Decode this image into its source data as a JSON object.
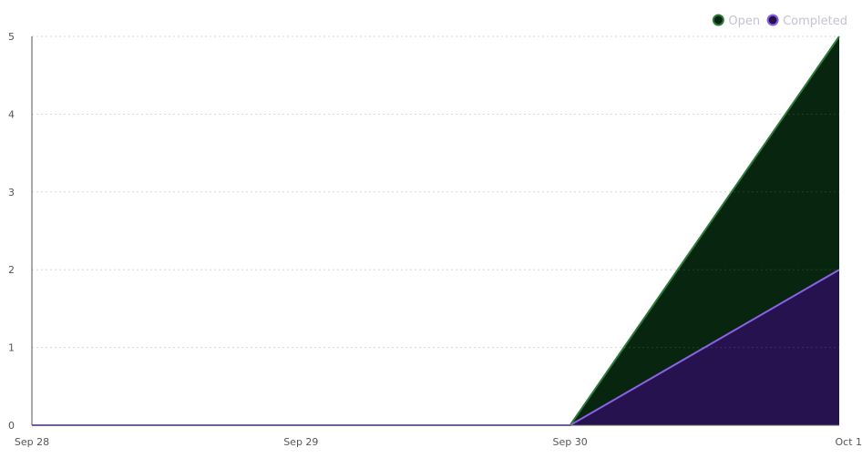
{
  "chart_data": {
    "type": "area",
    "x": [
      "Sep 28",
      "Sep 29",
      "Sep 30",
      "Oct 1"
    ],
    "ylim": [
      0,
      5
    ],
    "y_ticks": [
      "0",
      "1",
      "2",
      "3",
      "4",
      "5"
    ],
    "grid": "horizontal dashed",
    "legend_position": "top-right",
    "series": [
      {
        "name": "Open",
        "values": [
          0,
          0,
          0,
          5
        ],
        "fill": "#082510",
        "stroke": "#2f7a3b"
      },
      {
        "name": "Completed",
        "values": [
          0,
          0,
          0,
          2
        ],
        "fill": "#26124f",
        "stroke": "#8a63e6"
      }
    ]
  }
}
